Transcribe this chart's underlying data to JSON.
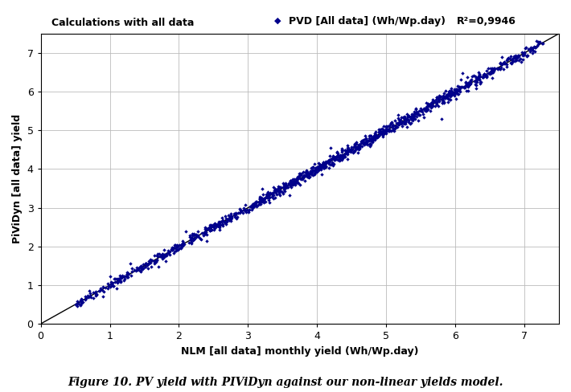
{
  "title_left": "Calculations with all data",
  "legend_label": "PVD [All data] (Wh/Wp.day)",
  "r2_label": "R²=0,9946",
  "xlabel": "NLM [all data] monthly yield (Wh/Wp.day)",
  "ylabel": "PiViDyn [all data] yield",
  "caption": "Figure 10. PV yield with PIViDyn against our non-linear yields model.",
  "xlim": [
    0,
    7.5
  ],
  "ylim": [
    0,
    7.5
  ],
  "xticks": [
    0,
    1,
    2,
    3,
    4,
    5,
    6,
    7
  ],
  "yticks": [
    0,
    1,
    2,
    3,
    4,
    5,
    6,
    7
  ],
  "dot_color": "#00008B",
  "dot_size": 5,
  "line_color": "#000000",
  "background_color": "#ffffff",
  "grid_color": "#bbbbbb",
  "seed": 42
}
